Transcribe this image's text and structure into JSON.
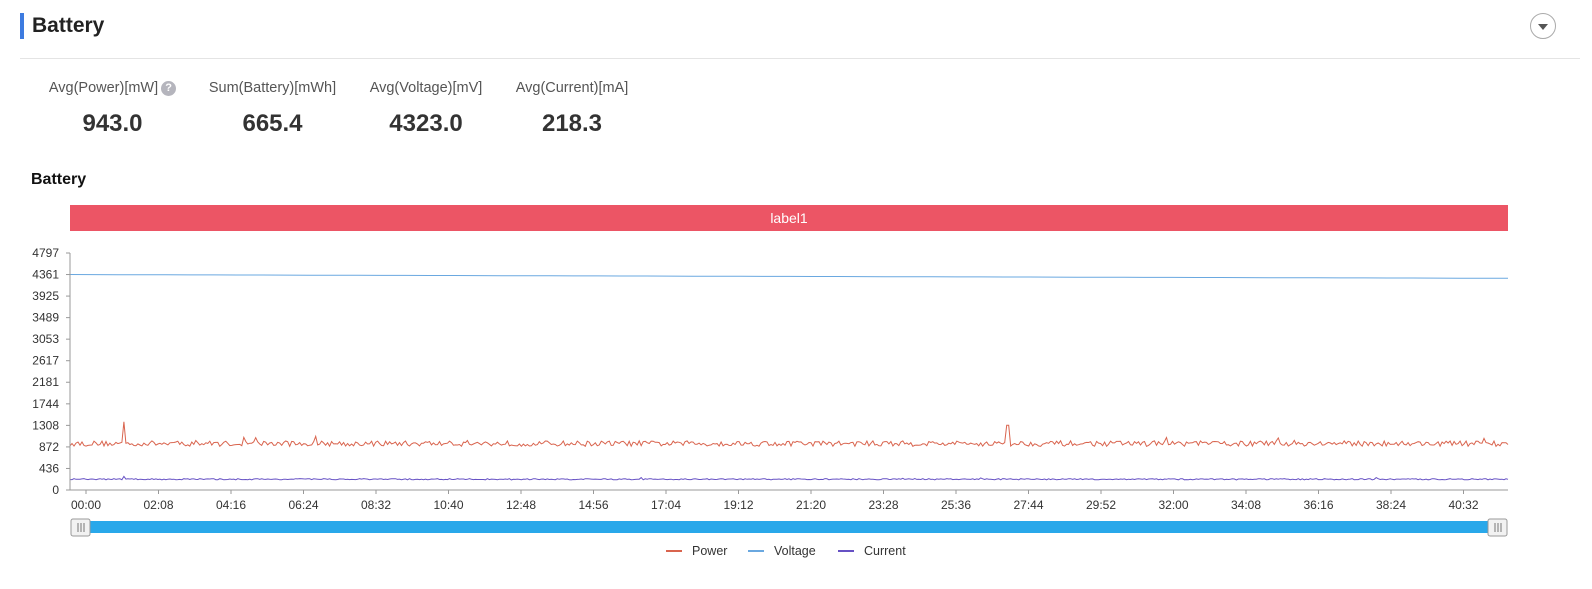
{
  "panel": {
    "title": "Battery"
  },
  "stats": [
    {
      "label": "Avg(Power)[mW]",
      "value": "943.0",
      "help": "?"
    },
    {
      "label": "Sum(Battery)[mWh]",
      "value": "665.4"
    },
    {
      "label": "Avg(Voltage)[mV]",
      "value": "4323.0"
    },
    {
      "label": "Avg(Current)[mA]",
      "value": "218.3"
    }
  ],
  "chart": {
    "title": "Battery",
    "band_label": "label1"
  },
  "colors": {
    "power": "#d9644e",
    "voltage": "#6aa8e0",
    "current": "#6651c4",
    "band": "#ec5565",
    "slider": "#29a8ea"
  },
  "chart_data": {
    "type": "line",
    "title": "Battery",
    "xlabel": "",
    "ylabel": "",
    "x_ticks": [
      "00:00",
      "02:08",
      "04:16",
      "06:24",
      "08:32",
      "10:40",
      "12:48",
      "14:56",
      "17:04",
      "19:12",
      "21:20",
      "23:28",
      "25:36",
      "27:44",
      "29:52",
      "32:00",
      "34:08",
      "36:16",
      "38:24",
      "40:32"
    ],
    "x_range_seconds": [
      0,
      2530
    ],
    "y_ticks": [
      0,
      436,
      872,
      1308,
      1744,
      2181,
      2617,
      3053,
      3489,
      3925,
      4361,
      4797
    ],
    "ylim": [
      0,
      4797
    ],
    "legend_position": "bottom-center",
    "series": [
      {
        "name": "Power",
        "base": 940,
        "noise": 55,
        "spikes": [
          [
            95,
            1380
          ],
          [
            1650,
            1310
          ]
        ]
      },
      {
        "name": "Voltage",
        "start": 4361,
        "end": 4285
      },
      {
        "name": "Current",
        "base": 218,
        "noise": 12,
        "spikes": [
          [
            95,
            275
          ]
        ]
      }
    ]
  }
}
